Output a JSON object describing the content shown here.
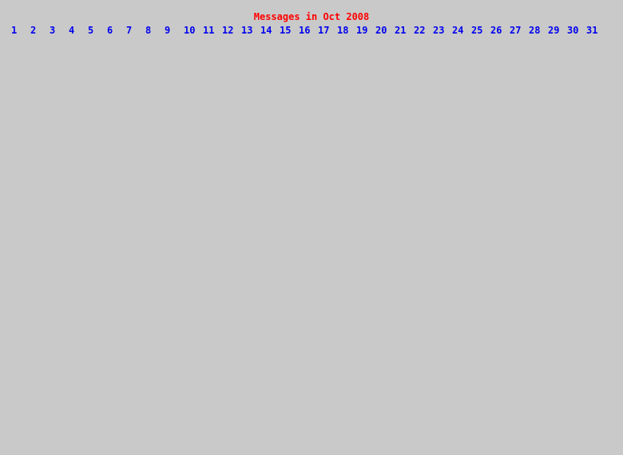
{
  "page": {
    "title": "Messages in Oct 2008",
    "background_color": "#c9c9c9",
    "title_color": "#ff0000",
    "day_link_color": "#0000ee"
  },
  "day_links": [
    "1",
    "2",
    "3",
    "4",
    "5",
    "6",
    "7",
    "8",
    "9",
    "10",
    "11",
    "12",
    "13",
    "14",
    "15",
    "16",
    "17",
    "18",
    "19",
    "20",
    "21",
    "22",
    "23",
    "24",
    "25",
    "26",
    "27",
    "28",
    "29",
    "30",
    "31"
  ]
}
